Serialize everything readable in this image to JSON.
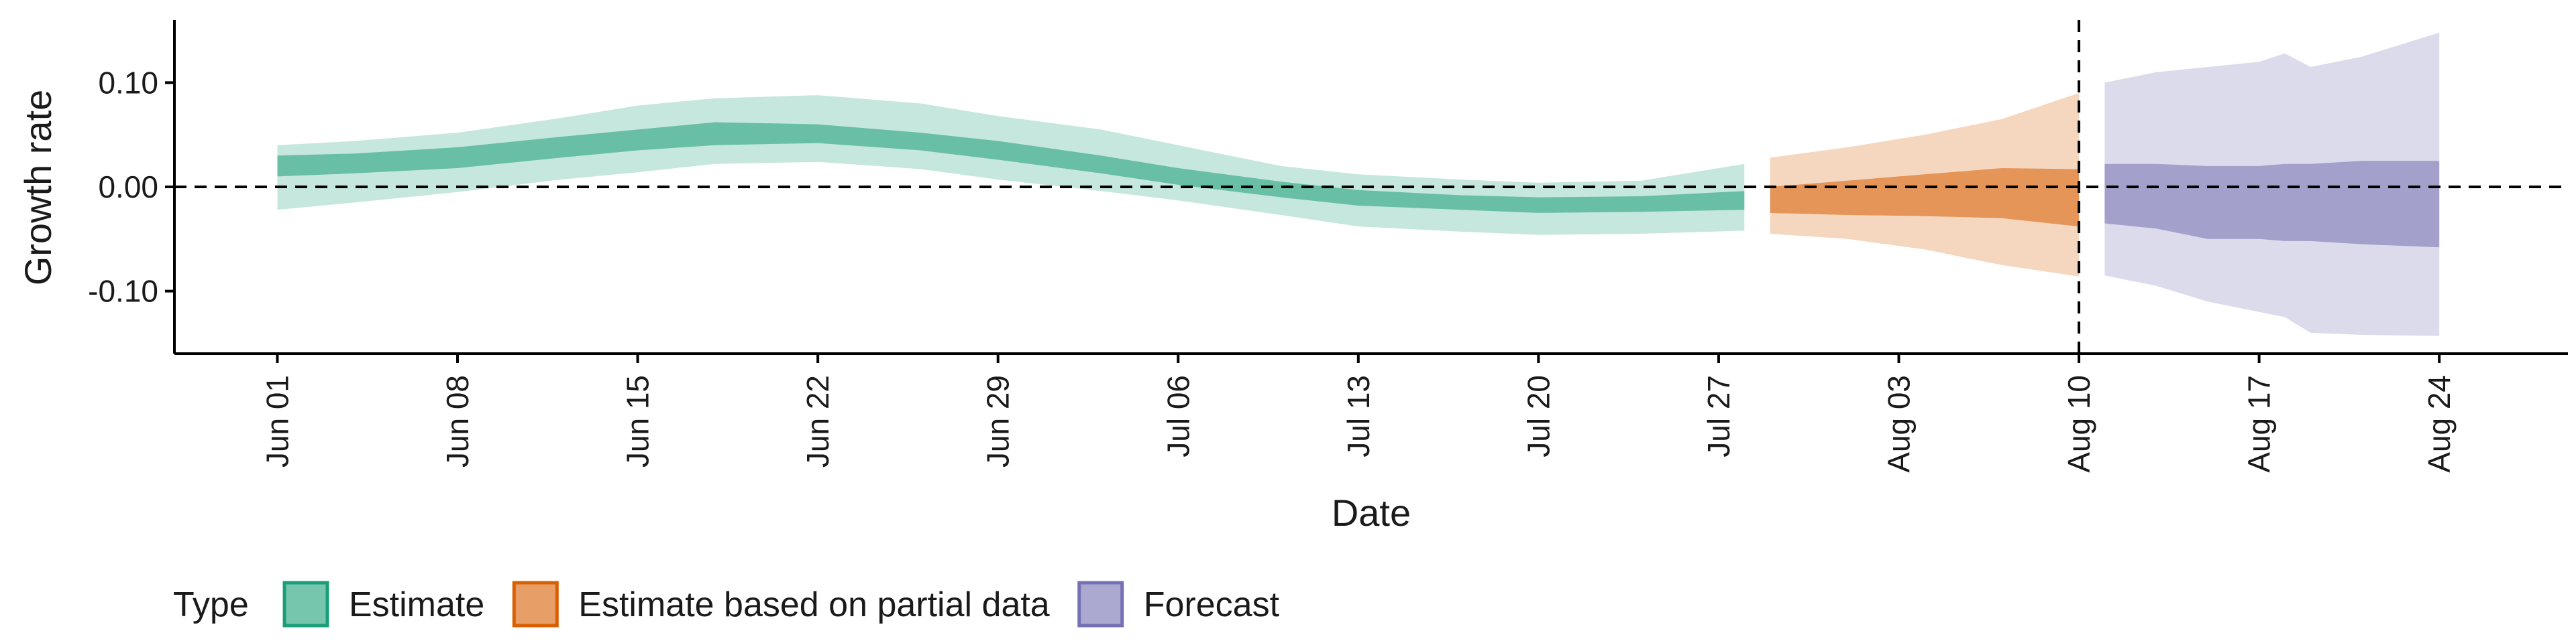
{
  "chart_data": {
    "type": "area",
    "xlabel": "Date",
    "ylabel": "Growth rate",
    "x_range": [
      "2020-05-28",
      "2020-08-29"
    ],
    "y_range": [
      -0.16,
      0.16
    ],
    "y_ticks": [
      {
        "value": 0.1,
        "label": "0.10"
      },
      {
        "value": 0.0,
        "label": "0.00"
      },
      {
        "value": -0.1,
        "label": "-0.10"
      }
    ],
    "x_ticks": [
      {
        "value": "2020-06-01",
        "label": "Jun 01"
      },
      {
        "value": "2020-06-08",
        "label": "Jun 08"
      },
      {
        "value": "2020-06-15",
        "label": "Jun 15"
      },
      {
        "value": "2020-06-22",
        "label": "Jun 22"
      },
      {
        "value": "2020-06-29",
        "label": "Jun 29"
      },
      {
        "value": "2020-07-06",
        "label": "Jul 06"
      },
      {
        "value": "2020-07-13",
        "label": "Jul 13"
      },
      {
        "value": "2020-07-20",
        "label": "Jul 20"
      },
      {
        "value": "2020-07-27",
        "label": "Jul 27"
      },
      {
        "value": "2020-08-03",
        "label": "Aug 03"
      },
      {
        "value": "2020-08-10",
        "label": "Aug 10"
      },
      {
        "value": "2020-08-17",
        "label": "Aug 17"
      },
      {
        "value": "2020-08-24",
        "label": "Aug 24"
      }
    ],
    "reference_lines": [
      {
        "axis": "y",
        "value": 0.0,
        "style": "dashed"
      },
      {
        "axis": "x",
        "value": "2020-08-10",
        "style": "dashed"
      }
    ],
    "legend": {
      "title": "Type",
      "position": "bottom-left"
    },
    "series": [
      {
        "name": "Estimate",
        "color": "#1b9e77",
        "points": [
          {
            "x": "2020-06-01",
            "outer": [
              -0.022,
              0.04
            ],
            "inner": [
              0.01,
              0.03
            ]
          },
          {
            "x": "2020-06-04",
            "outer": [
              -0.015,
              0.044
            ],
            "inner": [
              0.013,
              0.032
            ]
          },
          {
            "x": "2020-06-08",
            "outer": [
              -0.005,
              0.052
            ],
            "inner": [
              0.018,
              0.038
            ]
          },
          {
            "x": "2020-06-12",
            "outer": [
              0.007,
              0.066
            ],
            "inner": [
              0.028,
              0.048
            ]
          },
          {
            "x": "2020-06-15",
            "outer": [
              0.014,
              0.078
            ],
            "inner": [
              0.035,
              0.055
            ]
          },
          {
            "x": "2020-06-18",
            "outer": [
              0.022,
              0.085
            ],
            "inner": [
              0.04,
              0.062
            ]
          },
          {
            "x": "2020-06-22",
            "outer": [
              0.024,
              0.088
            ],
            "inner": [
              0.042,
              0.06
            ]
          },
          {
            "x": "2020-06-26",
            "outer": [
              0.017,
              0.08
            ],
            "inner": [
              0.035,
              0.052
            ]
          },
          {
            "x": "2020-06-29",
            "outer": [
              0.007,
              0.068
            ],
            "inner": [
              0.026,
              0.044
            ]
          },
          {
            "x": "2020-07-03",
            "outer": [
              -0.004,
              0.055
            ],
            "inner": [
              0.013,
              0.03
            ]
          },
          {
            "x": "2020-07-06",
            "outer": [
              -0.013,
              0.04
            ],
            "inner": [
              0.002,
              0.018
            ]
          },
          {
            "x": "2020-07-10",
            "outer": [
              -0.027,
              0.02
            ],
            "inner": [
              -0.01,
              0.005
            ]
          },
          {
            "x": "2020-07-13",
            "outer": [
              -0.038,
              0.012
            ],
            "inner": [
              -0.018,
              -0.003
            ]
          },
          {
            "x": "2020-07-17",
            "outer": [
              -0.043,
              0.007
            ],
            "inner": [
              -0.022,
              -0.008
            ]
          },
          {
            "x": "2020-07-20",
            "outer": [
              -0.046,
              0.004
            ],
            "inner": [
              -0.025,
              -0.01
            ]
          },
          {
            "x": "2020-07-24",
            "outer": [
              -0.045,
              0.006
            ],
            "inner": [
              -0.024,
              -0.009
            ]
          },
          {
            "x": "2020-07-28",
            "outer": [
              -0.042,
              0.022
            ],
            "inner": [
              -0.022,
              -0.004
            ]
          }
        ]
      },
      {
        "name": "Estimate based on partial data",
        "color": "#d95f02",
        "points": [
          {
            "x": "2020-07-29",
            "outer": [
              -0.045,
              0.028
            ],
            "inner": [
              -0.025,
              0.0
            ]
          },
          {
            "x": "2020-08-01",
            "outer": [
              -0.05,
              0.038
            ],
            "inner": [
              -0.027,
              0.006
            ]
          },
          {
            "x": "2020-08-04",
            "outer": [
              -0.06,
              0.05
            ],
            "inner": [
              -0.028,
              0.012
            ]
          },
          {
            "x": "2020-08-07",
            "outer": [
              -0.075,
              0.065
            ],
            "inner": [
              -0.03,
              0.018
            ]
          },
          {
            "x": "2020-08-10",
            "outer": [
              -0.086,
              0.09
            ],
            "inner": [
              -0.038,
              0.017
            ]
          }
        ]
      },
      {
        "name": "Forecast",
        "color": "#7570b3",
        "points": [
          {
            "x": "2020-08-11",
            "outer": [
              -0.085,
              0.1
            ],
            "inner": [
              -0.035,
              0.022
            ]
          },
          {
            "x": "2020-08-13",
            "outer": [
              -0.095,
              0.11
            ],
            "inner": [
              -0.04,
              0.022
            ]
          },
          {
            "x": "2020-08-15",
            "outer": [
              -0.11,
              0.115
            ],
            "inner": [
              -0.05,
              0.02
            ]
          },
          {
            "x": "2020-08-17",
            "outer": [
              -0.12,
              0.12
            ],
            "inner": [
              -0.05,
              0.02
            ]
          },
          {
            "x": "2020-08-18",
            "outer": [
              -0.125,
              0.128
            ],
            "inner": [
              -0.052,
              0.022
            ]
          },
          {
            "x": "2020-08-19",
            "outer": [
              -0.14,
              0.115
            ],
            "inner": [
              -0.052,
              0.022
            ]
          },
          {
            "x": "2020-08-21",
            "outer": [
              -0.142,
              0.125
            ],
            "inner": [
              -0.055,
              0.025
            ]
          },
          {
            "x": "2020-08-24",
            "outer": [
              -0.143,
              0.148
            ],
            "inner": [
              -0.058,
              0.025
            ]
          }
        ]
      }
    ]
  }
}
